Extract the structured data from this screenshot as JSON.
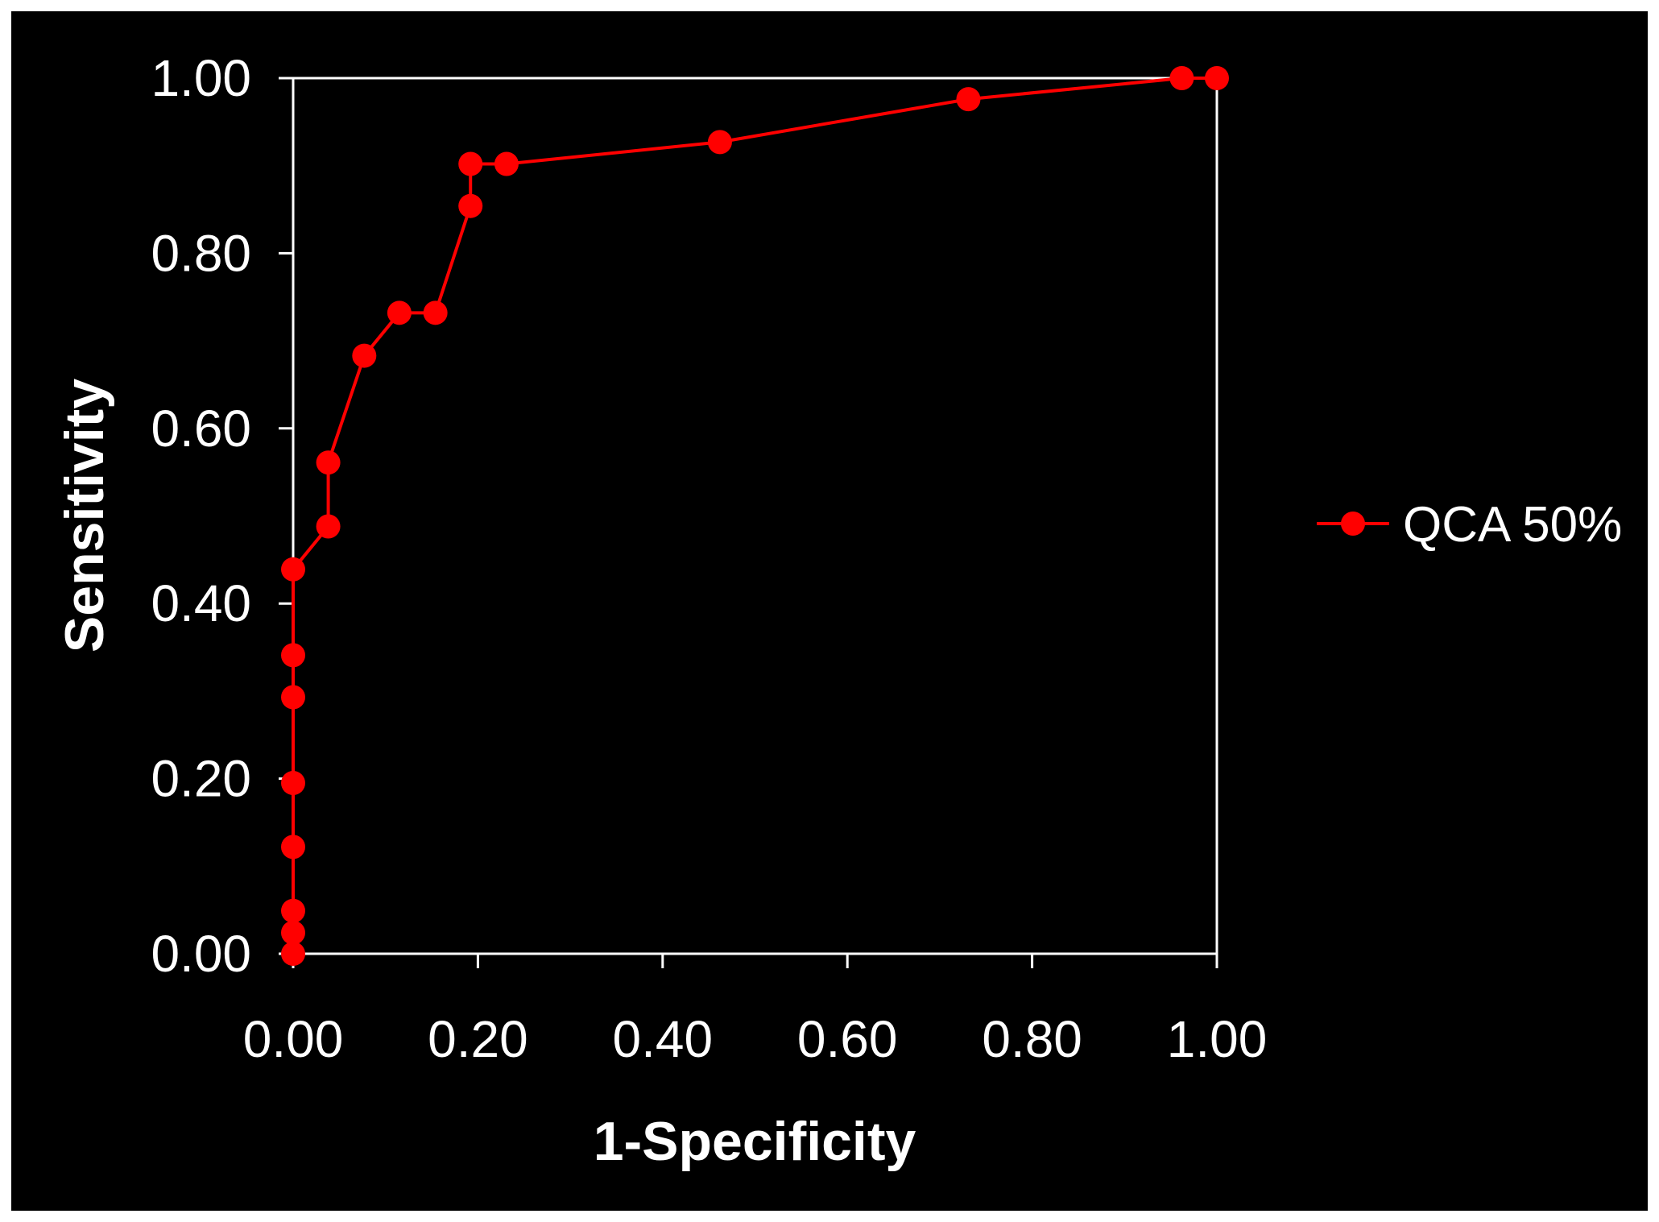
{
  "chart_data": {
    "type": "line",
    "title": "",
    "xlabel": "1-Specificity",
    "ylabel": "Sensitivity",
    "xlim": [
      0,
      1
    ],
    "ylim": [
      0,
      1
    ],
    "x_ticks": [
      "0.00",
      "0.20",
      "0.40",
      "0.60",
      "0.80",
      "1.00"
    ],
    "y_ticks": [
      "0.00",
      "0.20",
      "0.40",
      "0.60",
      "0.80",
      "1.00"
    ],
    "grid": false,
    "legend_position": "right",
    "background_color": "#000000",
    "axis_color": "#ffffff",
    "series": [
      {
        "name": "QCA 50%",
        "color": "#ff0000",
        "marker": "circle",
        "x": [
          0.0,
          0.0,
          0.0,
          0.0,
          0.0,
          0.0,
          0.0,
          0.0,
          0.038,
          0.038,
          0.077,
          0.115,
          0.154,
          0.192,
          0.192,
          0.231,
          0.462,
          0.731,
          0.962,
          1.0
        ],
        "y": [
          0.0,
          0.024,
          0.049,
          0.122,
          0.195,
          0.293,
          0.341,
          0.439,
          0.488,
          0.561,
          0.683,
          0.732,
          0.732,
          0.854,
          0.902,
          0.902,
          0.927,
          0.976,
          1.0,
          1.0
        ]
      }
    ]
  }
}
